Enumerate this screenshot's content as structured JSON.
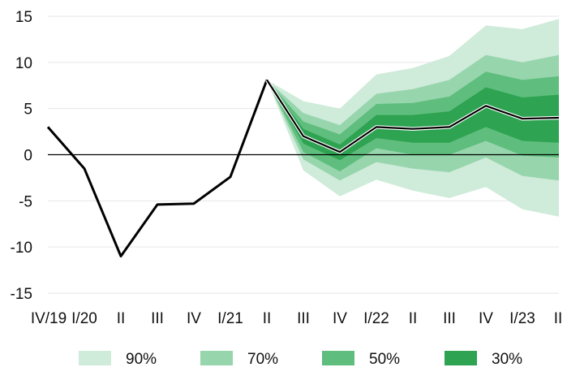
{
  "chart_data": {
    "type": "area",
    "categories": [
      "IV/19",
      "I/20",
      "II",
      "III",
      "IV",
      "I/21",
      "II",
      "III",
      "IV",
      "I/22",
      "II",
      "III",
      "IV",
      "I/23",
      "II"
    ],
    "series": [
      {
        "values": [
          3.0,
          -1.5,
          -11.0,
          -5.4,
          -5.3,
          -2.4,
          8.1,
          2.0,
          0.3,
          3.0,
          2.8,
          3.0,
          5.3,
          3.9,
          4.0
        ]
      }
    ],
    "fan_bands": [
      {
        "name": "90%",
        "lower": [
          null,
          null,
          null,
          null,
          null,
          null,
          8.1,
          -1.7,
          -4.5,
          -2.7,
          -3.9,
          -4.7,
          -3.5,
          -5.9,
          -6.7
        ],
        "upper": [
          null,
          null,
          null,
          null,
          null,
          null,
          8.1,
          5.8,
          5.0,
          8.7,
          9.4,
          10.7,
          14.0,
          13.6,
          14.7
        ]
      },
      {
        "name": "70%",
        "lower": [
          null,
          null,
          null,
          null,
          null,
          null,
          8.1,
          -0.5,
          -2.8,
          -0.8,
          -1.5,
          -1.9,
          -0.3,
          -2.3,
          -2.8
        ],
        "upper": [
          null,
          null,
          null,
          null,
          null,
          null,
          8.1,
          4.5,
          3.2,
          6.6,
          7.1,
          8.1,
          10.8,
          10.0,
          10.8
        ]
      },
      {
        "name": "50%",
        "lower": [
          null,
          null,
          null,
          null,
          null,
          null,
          8.1,
          0.3,
          -1.8,
          0.7,
          0.0,
          0.0,
          1.5,
          -0.1,
          -0.3
        ]
      },
      {
        "name": "30%",
        "lower": [
          null,
          null,
          null,
          null,
          null,
          null,
          8.1,
          1.2,
          -0.6,
          1.8,
          1.3,
          1.3,
          3.0,
          1.5,
          1.3
        ],
        "upper": [
          null,
          null,
          null,
          null,
          null,
          null,
          8.1,
          2.8,
          1.1,
          4.3,
          4.3,
          4.7,
          7.3,
          6.2,
          6.5
        ]
      }
    ],
    "band_upper_50": [
      null,
      null,
      null,
      null,
      null,
      null,
      8.1,
      3.6,
      2.2,
      5.5,
      5.6,
      6.3,
      9.0,
      8.1,
      8.5
    ],
    "yticks": [
      15,
      10,
      5,
      0,
      -5,
      -10,
      -15
    ],
    "ylim": [
      -15,
      15
    ],
    "grid": true,
    "legend": "bottom",
    "colors": {
      "90%": "#cfebd9",
      "70%": "#97d5ad",
      "50%": "#5fbe7d",
      "30%": "#2ea352",
      "line": "#000000",
      "zero_line": "#000000",
      "grid": "#e6e6e6",
      "center_line_outline": "#ffffff"
    }
  }
}
